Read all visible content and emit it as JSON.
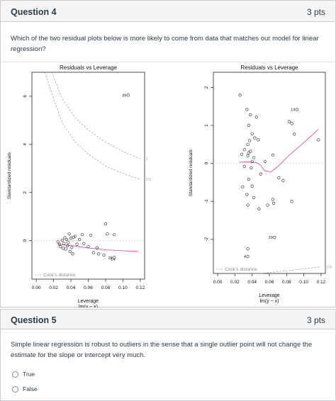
{
  "question4": {
    "title": "Question 4",
    "points": "3 pts",
    "text": "Which of the two residual plots below is more likely to come from data that matches our model for linear regression?"
  },
  "plots": [
    {
      "title": "Residuals vs Leverage",
      "xlabel": "Leverage",
      "xlabel2": "lm(y ~ x)",
      "ylabel": "Standardized residuals",
      "xlim": [
        -0.005,
        0.125
      ],
      "ylim": [
        -1.6,
        7.0
      ],
      "xticks": [
        "0.00",
        "0.02",
        "0.04",
        "0.06",
        "0.08",
        "0.10",
        "0.12"
      ],
      "yticks": [
        "0",
        "2",
        "4",
        "6"
      ],
      "legend": "Cook's distance",
      "cook_labels": [
        "1",
        "0.5"
      ],
      "smoother_color": "#df5d7b",
      "points": [
        [
          0.106,
          6.05
        ],
        [
          0.025,
          -0.05
        ],
        [
          0.027,
          -0.15
        ],
        [
          0.028,
          -0.25
        ],
        [
          0.03,
          0.02
        ],
        [
          0.031,
          -0.32
        ],
        [
          0.032,
          -0.12
        ],
        [
          0.033,
          0.12
        ],
        [
          0.034,
          -0.35
        ],
        [
          0.035,
          0.05
        ],
        [
          0.036,
          -0.22
        ],
        [
          0.037,
          -0.08
        ],
        [
          0.038,
          0.28
        ],
        [
          0.039,
          -0.45
        ],
        [
          0.04,
          0.1
        ],
        [
          0.041,
          -0.28
        ],
        [
          0.042,
          -0.55
        ],
        [
          0.043,
          0.14
        ],
        [
          0.045,
          0.18
        ],
        [
          0.047,
          -0.15
        ],
        [
          0.05,
          0.05
        ],
        [
          0.053,
          0.25
        ],
        [
          0.055,
          -0.12
        ],
        [
          0.06,
          -0.25
        ],
        [
          0.063,
          0.22
        ],
        [
          0.066,
          -0.5
        ],
        [
          0.07,
          -0.3
        ],
        [
          0.072,
          -0.55
        ],
        [
          0.078,
          -0.6
        ],
        [
          0.08,
          0.7
        ],
        [
          0.082,
          0.28
        ],
        [
          0.09,
          0.25
        ],
        [
          0.09,
          -0.7
        ]
      ],
      "labeled_points": [
        {
          "x": 0.106,
          "y": 6.05,
          "label": "39"
        },
        {
          "x": 0.09,
          "y": -0.72,
          "label": "28"
        },
        {
          "x": 0.093,
          "y": -0.78,
          "label": "14"
        }
      ],
      "smooth": [
        [
          0.024,
          -0.15
        ],
        [
          0.04,
          -0.2
        ],
        [
          0.06,
          -0.3
        ],
        [
          0.08,
          -0.38
        ],
        [
          0.1,
          -0.42
        ],
        [
          0.118,
          -0.45
        ]
      ],
      "cook_curves": [
        {
          "level": 1,
          "pts": [
            [
              0.018,
              7.0
            ],
            [
              0.03,
              5.9
            ],
            [
              0.045,
              5.1
            ],
            [
              0.06,
              4.6
            ],
            [
              0.08,
              4.1
            ],
            [
              0.1,
              3.7
            ],
            [
              0.12,
              3.4
            ]
          ]
        },
        {
          "level": 0.5,
          "pts": [
            [
              0.01,
              7.0
            ],
            [
              0.02,
              5.9
            ],
            [
              0.03,
              4.9
            ],
            [
              0.045,
              4.1
            ],
            [
              0.06,
              3.6
            ],
            [
              0.08,
              3.1
            ],
            [
              0.1,
              2.8
            ],
            [
              0.12,
              2.55
            ]
          ]
        }
      ]
    },
    {
      "title": "Residuals vs Leverage",
      "xlabel": "Leverage",
      "xlabel2": "lm(y ~ x)",
      "ylabel": "Standardized residuals",
      "xlim": [
        -0.005,
        0.125
      ],
      "ylim": [
        -2.9,
        2.4
      ],
      "xticks": [
        "0.00",
        "0.02",
        "0.04",
        "0.06",
        "0.08",
        "0.10",
        "0.12"
      ],
      "yticks": [
        "-2",
        "-1",
        "0",
        "1",
        "2"
      ],
      "legend": "Cook's distance",
      "cook_labels": [
        "0.5"
      ],
      "smoother_color": "#df5d7b",
      "points": [
        [
          0.026,
          1.8
        ],
        [
          0.034,
          1.42
        ],
        [
          0.038,
          1.28
        ],
        [
          0.045,
          1.22
        ],
        [
          0.036,
          1.0
        ],
        [
          0.04,
          0.78
        ],
        [
          0.043,
          0.67
        ],
        [
          0.047,
          0.62
        ],
        [
          0.037,
          0.6
        ],
        [
          0.035,
          0.5
        ],
        [
          0.031,
          0.36
        ],
        [
          0.038,
          0.32
        ],
        [
          0.036,
          0.28
        ],
        [
          0.028,
          0.24
        ],
        [
          0.035,
          0.2
        ],
        [
          0.042,
          0.15
        ],
        [
          0.04,
          0.05
        ],
        [
          0.055,
          0.05
        ],
        [
          0.031,
          -0.08
        ],
        [
          0.039,
          -0.12
        ],
        [
          0.05,
          -0.28
        ],
        [
          0.036,
          -0.42
        ],
        [
          0.04,
          -0.6
        ],
        [
          0.029,
          -0.62
        ],
        [
          0.034,
          -0.82
        ],
        [
          0.042,
          -0.9
        ],
        [
          0.064,
          -0.95
        ],
        [
          0.065,
          -1.05
        ],
        [
          0.035,
          -1.1
        ],
        [
          0.048,
          -1.2
        ],
        [
          0.058,
          -1.1
        ],
        [
          0.071,
          -0.38
        ],
        [
          0.076,
          -0.45
        ],
        [
          0.086,
          -1.0
        ],
        [
          0.086,
          1.05
        ],
        [
          0.083,
          1.1
        ],
        [
          0.089,
          0.77
        ],
        [
          0.092,
          1.42
        ],
        [
          0.117,
          0.62
        ],
        [
          0.066,
          -1.95
        ],
        [
          0.035,
          -2.25
        ],
        [
          0.035,
          -2.45
        ],
        [
          0.064,
          0.22
        ]
      ],
      "labeled_points": [
        {
          "x": 0.092,
          "y": 1.42,
          "label": "14"
        },
        {
          "x": 0.066,
          "y": -1.95,
          "label": "29"
        },
        {
          "x": 0.035,
          "y": -2.45,
          "label": "4"
        }
      ],
      "smooth": [
        [
          0.025,
          0.03
        ],
        [
          0.035,
          0.04
        ],
        [
          0.045,
          0.02
        ],
        [
          0.05,
          -0.05
        ],
        [
          0.053,
          -0.15
        ],
        [
          0.055,
          -0.2
        ],
        [
          0.062,
          -0.22
        ],
        [
          0.07,
          -0.08
        ],
        [
          0.08,
          0.15
        ],
        [
          0.09,
          0.35
        ],
        [
          0.1,
          0.55
        ],
        [
          0.11,
          0.75
        ],
        [
          0.117,
          0.9
        ]
      ],
      "cook_curves": [
        {
          "level": 0.5,
          "pts": [
            [
              0.02,
              -2.95
            ],
            [
              0.05,
              -2.9
            ],
            [
              0.08,
              -2.83
            ],
            [
              0.1,
              -2.78
            ],
            [
              0.12,
              -2.72
            ]
          ]
        }
      ]
    }
  ],
  "question5": {
    "title": "Question 5",
    "points": "3 pts",
    "text": "Simple linear regression is robust to outliers in the sense that a single outlier point will not change the estimate for the slope or intercept very much.",
    "answers": [
      "True",
      "False"
    ]
  }
}
